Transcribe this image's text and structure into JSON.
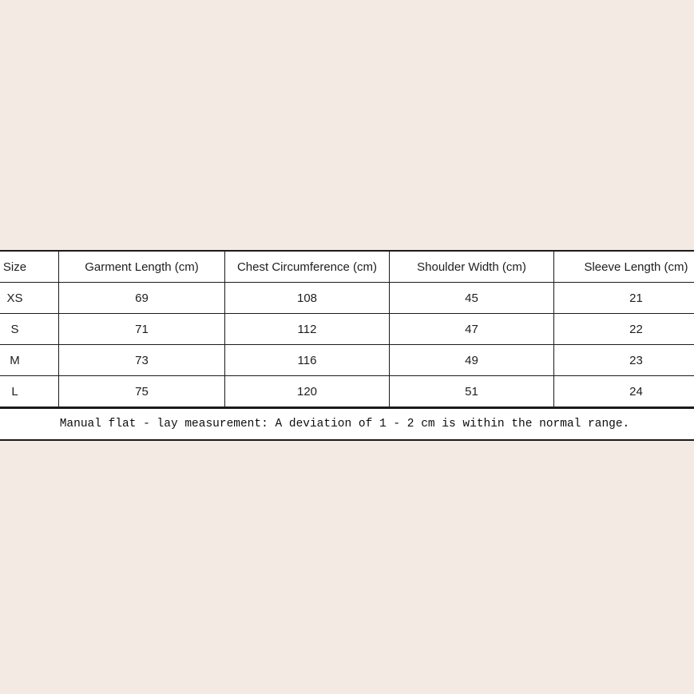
{
  "page": {
    "background_color": "#f2eae3",
    "table_background": "#ffffff",
    "border_color": "#1a1a1a"
  },
  "size_chart": {
    "columns": [
      "Size",
      "Garment Length (cm)",
      "Chest Circumference (cm)",
      "Shoulder Width (cm)",
      "Sleeve Length (cm)"
    ],
    "rows": [
      [
        "XS",
        "69",
        "108",
        "45",
        "21"
      ],
      [
        "S",
        "71",
        "112",
        "47",
        "22"
      ],
      [
        "M",
        "73",
        "116",
        "49",
        "23"
      ],
      [
        "L",
        "75",
        "120",
        "51",
        "24"
      ]
    ],
    "note": "Manual flat - lay measurement: A deviation of 1 - 2 cm is within the normal range."
  },
  "chart_data": {
    "type": "table",
    "columns": [
      "Size",
      "Garment Length (cm)",
      "Chest Circumference (cm)",
      "Shoulder Width (cm)",
      "Sleeve Length (cm)"
    ],
    "rows": [
      {
        "size": "XS",
        "garment_length_cm": 69,
        "chest_circumference_cm": 108,
        "shoulder_width_cm": 45,
        "sleeve_length_cm": 21
      },
      {
        "size": "S",
        "garment_length_cm": 71,
        "chest_circumference_cm": 112,
        "shoulder_width_cm": 47,
        "sleeve_length_cm": 22
      },
      {
        "size": "M",
        "garment_length_cm": 73,
        "chest_circumference_cm": 116,
        "shoulder_width_cm": 49,
        "sleeve_length_cm": 23
      },
      {
        "size": "L",
        "garment_length_cm": 75,
        "chest_circumference_cm": 120,
        "shoulder_width_cm": 51,
        "sleeve_length_cm": 24
      }
    ],
    "annotations": [
      "Manual flat - lay measurement: A deviation of 1 - 2 cm is within the normal range."
    ]
  }
}
